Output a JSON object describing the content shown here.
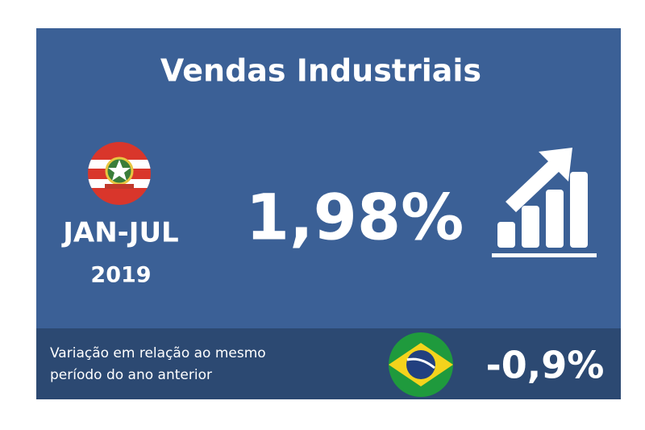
{
  "card": {
    "title": "Vendas Industriais",
    "period": "JAN-JUL",
    "year": "2019",
    "value": "1,98%",
    "footer": {
      "lines": [
        "Variação em relação ao mesmo",
        "período do ano anterior"
      ],
      "brazil_value": "-0,9%"
    }
  }
}
